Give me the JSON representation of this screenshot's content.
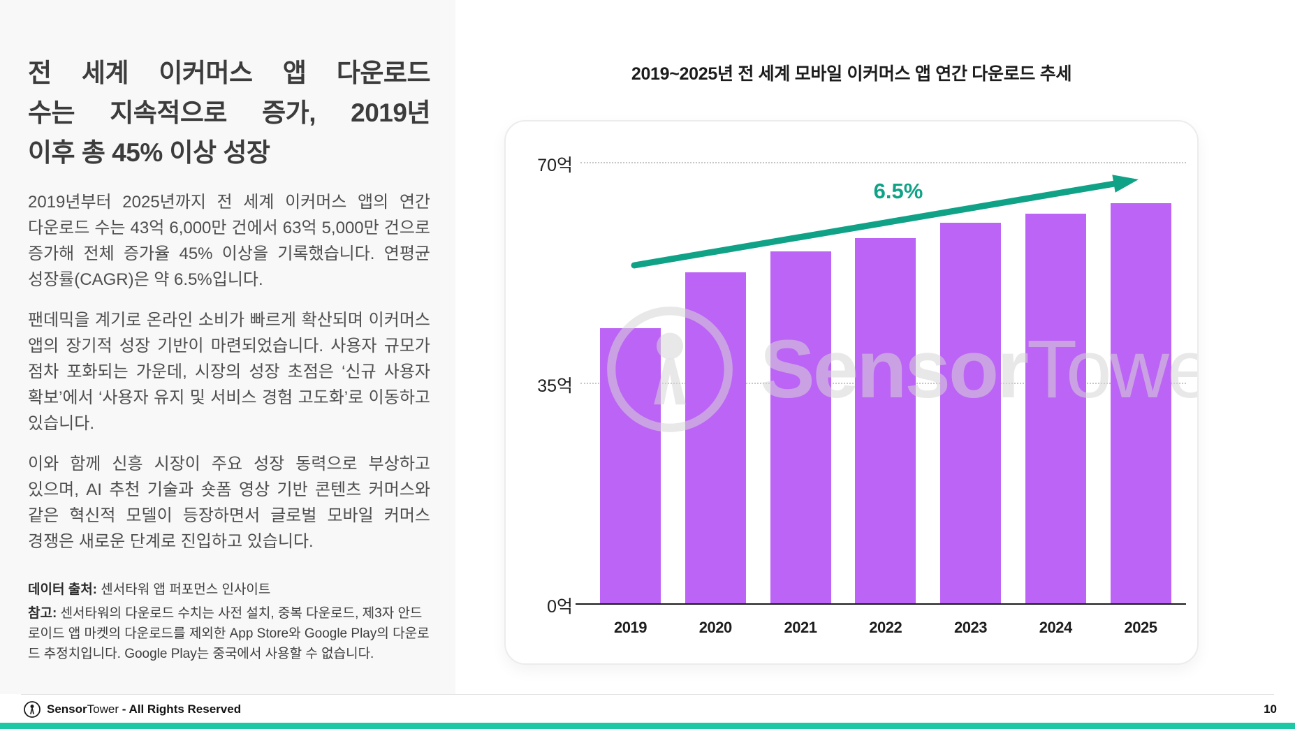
{
  "sidebar": {
    "title_lines": [
      "전 세계 이커머스 앱 다운로드",
      "수는 지속적으로 증가, 2019년",
      "이후 총 45% 이상 성장"
    ],
    "paragraphs": [
      "2019년부터 2025년까지 전 세계 이커머스 앱의 연간 다운로드 수는 43억 6,000만 건에서 63억 5,000만 건으로 증가해 전체 증가율 45% 이상을 기록했습니다. 연평균 성장률(CAGR)은 약 6.5%입니다.",
      "팬데믹을 계기로 온라인 소비가 빠르게 확산되며 이커머스 앱의 장기적 성장 기반이 마련되었습니다. 사용자 규모가 점차 포화되는 가운데, 시장의 성장 초점은 ‘신규 사용자 확보’에서 ‘사용자 유지 및 서비스 경험 고도화’로 이동하고 있습니다.",
      "이와 함께 신흥 시장이 주요 성장 동력으로 부상하고 있으며, AI 추천 기술과 숏폼 영상 기반 콘텐츠 커머스와 같은 혁신적 모델이 등장하면서 글로벌 모바일 커머스 경쟁은 새로운 단계로 진입하고 있습니다."
    ],
    "notes": [
      {
        "label": "데이터 출처:",
        "text": "센서타워 앱 퍼포먼스 인사이트"
      },
      {
        "label": "참고:",
        "text": "센서타워의 다운로드 수치는 사전 설치, 중복 다운로드, 제3자 안드로이드 앱 마켓의 다운로드를 제외한 App Store와 Google Play의 다운로드 추정치입니다. Google Play는 중국에서 사용할 수 없습니다."
      }
    ]
  },
  "chart_data": {
    "type": "bar",
    "title": "2019~2025년 전 세계 모바일 이커머스 앱 연간 다운로드 추세",
    "categories": [
      "2019",
      "2020",
      "2021",
      "2022",
      "2023",
      "2024",
      "2025"
    ],
    "values": [
      43.6,
      52.5,
      55.8,
      57.9,
      60.4,
      61.8,
      63.5
    ],
    "unit": "억",
    "ylim": [
      0,
      70
    ],
    "y_ticks": [
      {
        "label": "70억",
        "value": 70
      },
      {
        "label": "35억",
        "value": 35
      },
      {
        "label": "0억",
        "value": 0
      }
    ],
    "grid": "dotted horizontal at 35억 and 70억",
    "legend_position": "none",
    "trend": {
      "label": "6.5%",
      "description": "CAGR arrow from 2019 to 2025"
    },
    "watermark": {
      "bold": "Sensor",
      "light": "Tower"
    },
    "colors": {
      "bar": "#bc64f5",
      "trend": "#10a287",
      "axis": "#1b1b1b"
    }
  },
  "footer": {
    "brand_bold": "Sensor",
    "brand_light": "Tower",
    "rights": " - All Rights Reserved",
    "page_number": "10",
    "bottom_bar_color": "#1cc9a4"
  }
}
